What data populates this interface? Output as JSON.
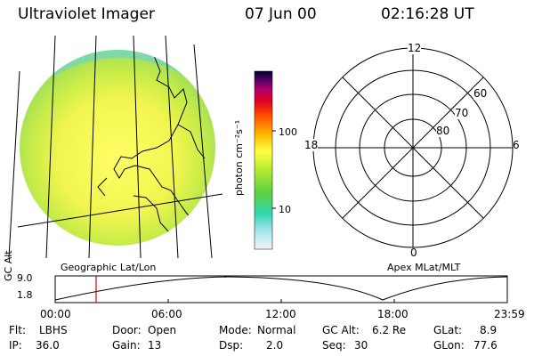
{
  "header": {
    "title": "Ultraviolet Imager",
    "date": "07 Jun 00",
    "time": "02:16:28 UT"
  },
  "colorbar": {
    "unit_label": "photon cm⁻²s⁻¹",
    "ticks": [
      "100",
      "10"
    ]
  },
  "polar_plot": {
    "mlt_labels": {
      "top": "12",
      "bottom": "0",
      "left": "18",
      "right": "6"
    },
    "lat_labels": [
      "60",
      "70",
      "80"
    ]
  },
  "imager_panel": {
    "caption": "Geographic Lat/Lon"
  },
  "polar_panel": {
    "caption": "Apex MLat/MLT"
  },
  "altitude_strip": {
    "axis_label": "GC Alt",
    "y_ticks": [
      "9.0",
      "1.8"
    ],
    "x_ticks": [
      "00:00",
      "06:00",
      "12:00",
      "18:00",
      "23:59"
    ],
    "marker_color": "#e00000"
  },
  "footer": {
    "flt_label": "Flt:",
    "flt_value": "LBHS",
    "ip_label": "IP:",
    "ip_value": "36.0",
    "door_label": "Door:",
    "door_value": "Open",
    "gain_label": "Gain:",
    "gain_value": "13",
    "mode_label": "Mode:",
    "mode_value": "Normal",
    "dsp_label": "Dsp:",
    "dsp_value": "2.0",
    "gcalt_label": "GC Alt:",
    "gcalt_value": "6.2 Re",
    "seq_label": "Seq:",
    "seq_value": "30",
    "glat_label": "GLat:",
    "glat_value": "8.9",
    "glon_label": "GLon:",
    "glon_value": "77.6"
  }
}
